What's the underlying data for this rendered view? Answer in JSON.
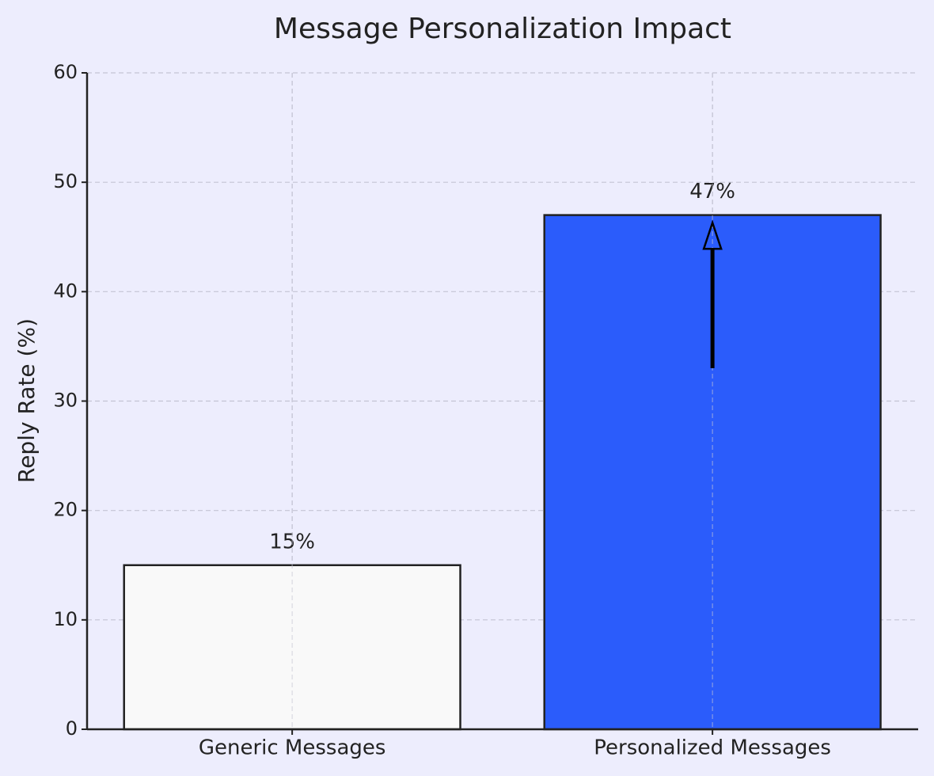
{
  "chart_data": {
    "type": "bar",
    "title": "Message Personalization Impact",
    "y_label": "Reply Rate (%)",
    "categories": [
      "Generic Messages",
      "Personalized Messages"
    ],
    "values": [
      15,
      47
    ],
    "value_labels": [
      "15%",
      "47%"
    ],
    "colors": [
      "#f9f9f9",
      "#2b5cfb"
    ],
    "ylim": [
      0,
      60
    ],
    "yticks": [
      0,
      10,
      20,
      30,
      40,
      50,
      60
    ],
    "grid": true,
    "arrow": {
      "from": 33,
      "to": 46.3
    }
  }
}
